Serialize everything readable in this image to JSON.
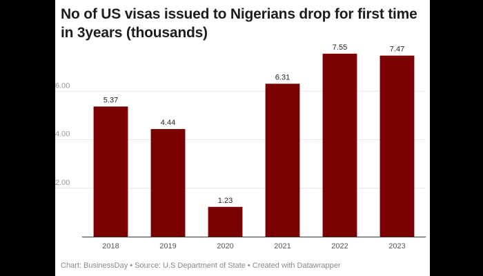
{
  "chart_data": {
    "type": "bar",
    "title": "No of US visas issued to Nigerians drop for first time in 3years (thousands)",
    "categories": [
      "2018",
      "2019",
      "2020",
      "2021",
      "2022",
      "2023"
    ],
    "values": [
      5.37,
      4.44,
      1.23,
      6.31,
      7.55,
      7.47
    ],
    "value_labels": [
      "5.37",
      "4.44",
      "1.23",
      "6.31",
      "7.55",
      "7.47"
    ],
    "y_ticks": [
      2,
      4,
      6
    ],
    "y_tick_labels": [
      "2.00",
      "4.00",
      "6.00"
    ],
    "ylim": [
      0,
      8
    ],
    "xlabel": "",
    "ylabel": "",
    "grid": true,
    "bar_color": "#7b0000"
  },
  "footer": {
    "chart_credit": "Chart: BusinessDay",
    "source": "Source: U.S Department of State",
    "created_with": "Created with Datawrapper",
    "separator": "•"
  },
  "colors": {
    "background_outer": "#000000",
    "card_background": "#ffffff",
    "title_text": "#1d1d1d",
    "gridline": "#e6e6e6",
    "axis_line": "#333333",
    "tick_label": "#999999"
  }
}
